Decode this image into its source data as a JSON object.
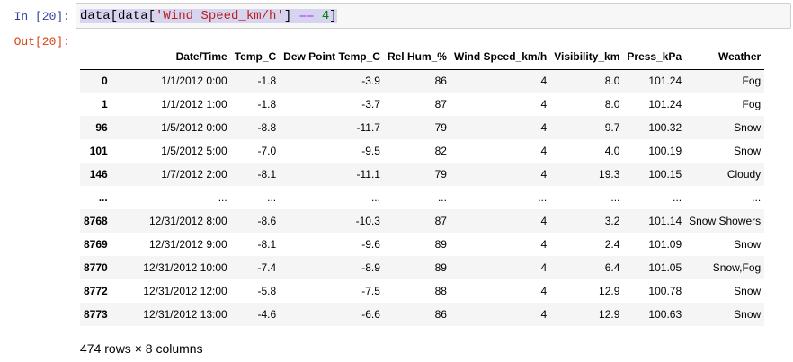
{
  "cell": {
    "in_prompt": "In [20]:",
    "out_prompt": "Out[20]:",
    "code": {
      "prefix": "data[data[",
      "string": "'Wind Speed_km/h'",
      "middle": "] ",
      "operator": "==",
      "space": " ",
      "number": "4",
      "suffix": "]"
    }
  },
  "table": {
    "columns": [
      "",
      "Date/Time",
      "Temp_C",
      "Dew Point Temp_C",
      "Rel Hum_%",
      "Wind Speed_km/h",
      "Visibility_km",
      "Press_kPa",
      "Weather"
    ],
    "rows": [
      [
        "0",
        "1/1/2012 0:00",
        "-1.8",
        "-3.9",
        "86",
        "4",
        "8.0",
        "101.24",
        "Fog"
      ],
      [
        "1",
        "1/1/2012 1:00",
        "-1.8",
        "-3.7",
        "87",
        "4",
        "8.0",
        "101.24",
        "Fog"
      ],
      [
        "96",
        "1/5/2012 0:00",
        "-8.8",
        "-11.7",
        "79",
        "4",
        "9.7",
        "100.32",
        "Snow"
      ],
      [
        "101",
        "1/5/2012 5:00",
        "-7.0",
        "-9.5",
        "82",
        "4",
        "4.0",
        "100.19",
        "Snow"
      ],
      [
        "146",
        "1/7/2012 2:00",
        "-8.1",
        "-11.1",
        "79",
        "4",
        "19.3",
        "100.15",
        "Cloudy"
      ],
      [
        "...",
        "...",
        "...",
        "...",
        "...",
        "...",
        "...",
        "...",
        "..."
      ],
      [
        "8768",
        "12/31/2012 8:00",
        "-8.6",
        "-10.3",
        "87",
        "4",
        "3.2",
        "101.14",
        "Snow Showers"
      ],
      [
        "8769",
        "12/31/2012 9:00",
        "-8.1",
        "-9.6",
        "89",
        "4",
        "2.4",
        "101.09",
        "Snow"
      ],
      [
        "8770",
        "12/31/2012 10:00",
        "-7.4",
        "-8.9",
        "89",
        "4",
        "6.4",
        "101.05",
        "Snow,Fog"
      ],
      [
        "8772",
        "12/31/2012 12:00",
        "-5.8",
        "-7.5",
        "88",
        "4",
        "12.9",
        "100.78",
        "Snow"
      ],
      [
        "8773",
        "12/31/2012 13:00",
        "-4.6",
        "-6.6",
        "86",
        "4",
        "12.9",
        "100.63",
        "Snow"
      ]
    ],
    "footer": "474 rows × 8 columns"
  }
}
